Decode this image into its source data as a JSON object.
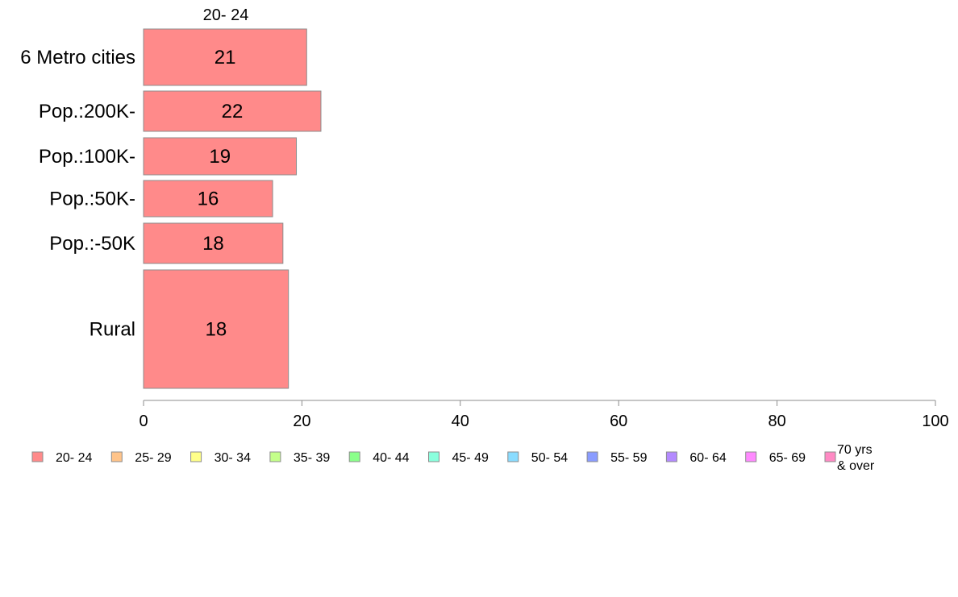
{
  "chart_data": {
    "type": "bar",
    "orientation": "horizontal",
    "column_header": "20- 24",
    "categories": [
      "6 Metro cities",
      "Pop.:200K-",
      "Pop.:100K-",
      "Pop.:50K-",
      "Pop.:-50K",
      "Rural"
    ],
    "series": [
      {
        "name": "20- 24",
        "values": [
          21,
          22,
          19,
          16,
          18,
          18
        ],
        "bar_values": [
          20.6,
          22.4,
          19.3,
          16.3,
          17.6,
          18.3
        ],
        "color": "#ff8a8a"
      }
    ],
    "xlim": [
      0,
      100
    ],
    "xticks": [
      "0",
      "20",
      "40",
      "60",
      "80",
      "100"
    ],
    "grid": false,
    "legend": {
      "placement": "bottom",
      "items": [
        {
          "label": "20- 24",
          "color": "#ff8a8a"
        },
        {
          "label": "25- 29",
          "color": "#ffc48a"
        },
        {
          "label": "30- 34",
          "color": "#ffff8a"
        },
        {
          "label": "35- 39",
          "color": "#c4ff8a"
        },
        {
          "label": "40- 44",
          "color": "#8aff8a"
        },
        {
          "label": "45- 49",
          "color": "#8affdd"
        },
        {
          "label": "50- 54",
          "color": "#8adcff"
        },
        {
          "label": "55- 59",
          "color": "#8a9cff"
        },
        {
          "label": "60- 64",
          "color": "#b48aff"
        },
        {
          "label": "65- 69",
          "color": "#ff8aff"
        },
        {
          "label": "70 yrs\n& over",
          "color": "#ff8ac4"
        }
      ]
    }
  }
}
